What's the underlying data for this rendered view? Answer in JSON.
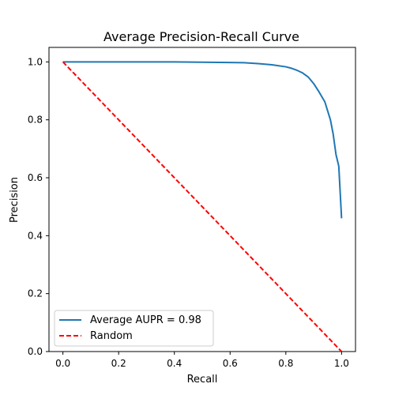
{
  "chart_data": {
    "type": "line",
    "title": "Average Precision-Recall Curve",
    "xlabel": "Recall",
    "ylabel": "Precision",
    "xlim": [
      -0.05,
      1.05
    ],
    "ylim": [
      0.0,
      1.05
    ],
    "xticks": [
      0.0,
      0.2,
      0.4,
      0.6,
      0.8,
      1.0
    ],
    "yticks": [
      0.0,
      0.2,
      0.4,
      0.6,
      0.8,
      1.0
    ],
    "xtick_labels": [
      "0.0",
      "0.2",
      "0.4",
      "0.6",
      "0.8",
      "1.0"
    ],
    "ytick_labels": [
      "0.0",
      "0.2",
      "0.4",
      "0.6",
      "0.8",
      "1.0"
    ],
    "grid": false,
    "legend_position": "lower-left",
    "series": [
      {
        "name": "Average AUPR = 0.98",
        "color": "#1f77b4",
        "style": "solid",
        "x": [
          0.0,
          0.05,
          0.1,
          0.2,
          0.3,
          0.4,
          0.5,
          0.6,
          0.65,
          0.7,
          0.75,
          0.8,
          0.82,
          0.84,
          0.86,
          0.88,
          0.9,
          0.92,
          0.94,
          0.96,
          0.97,
          0.98,
          0.99,
          1.0
        ],
        "y": [
          1.0,
          1.0,
          1.0,
          1.0,
          1.0,
          1.0,
          0.999,
          0.998,
          0.997,
          0.994,
          0.99,
          0.983,
          0.978,
          0.971,
          0.962,
          0.948,
          0.925,
          0.895,
          0.862,
          0.8,
          0.75,
          0.68,
          0.64,
          0.46
        ]
      },
      {
        "name": "Random",
        "color": "#ff0000",
        "style": "dashed",
        "x": [
          0.0,
          1.0
        ],
        "y": [
          1.0,
          0.0
        ]
      }
    ]
  }
}
